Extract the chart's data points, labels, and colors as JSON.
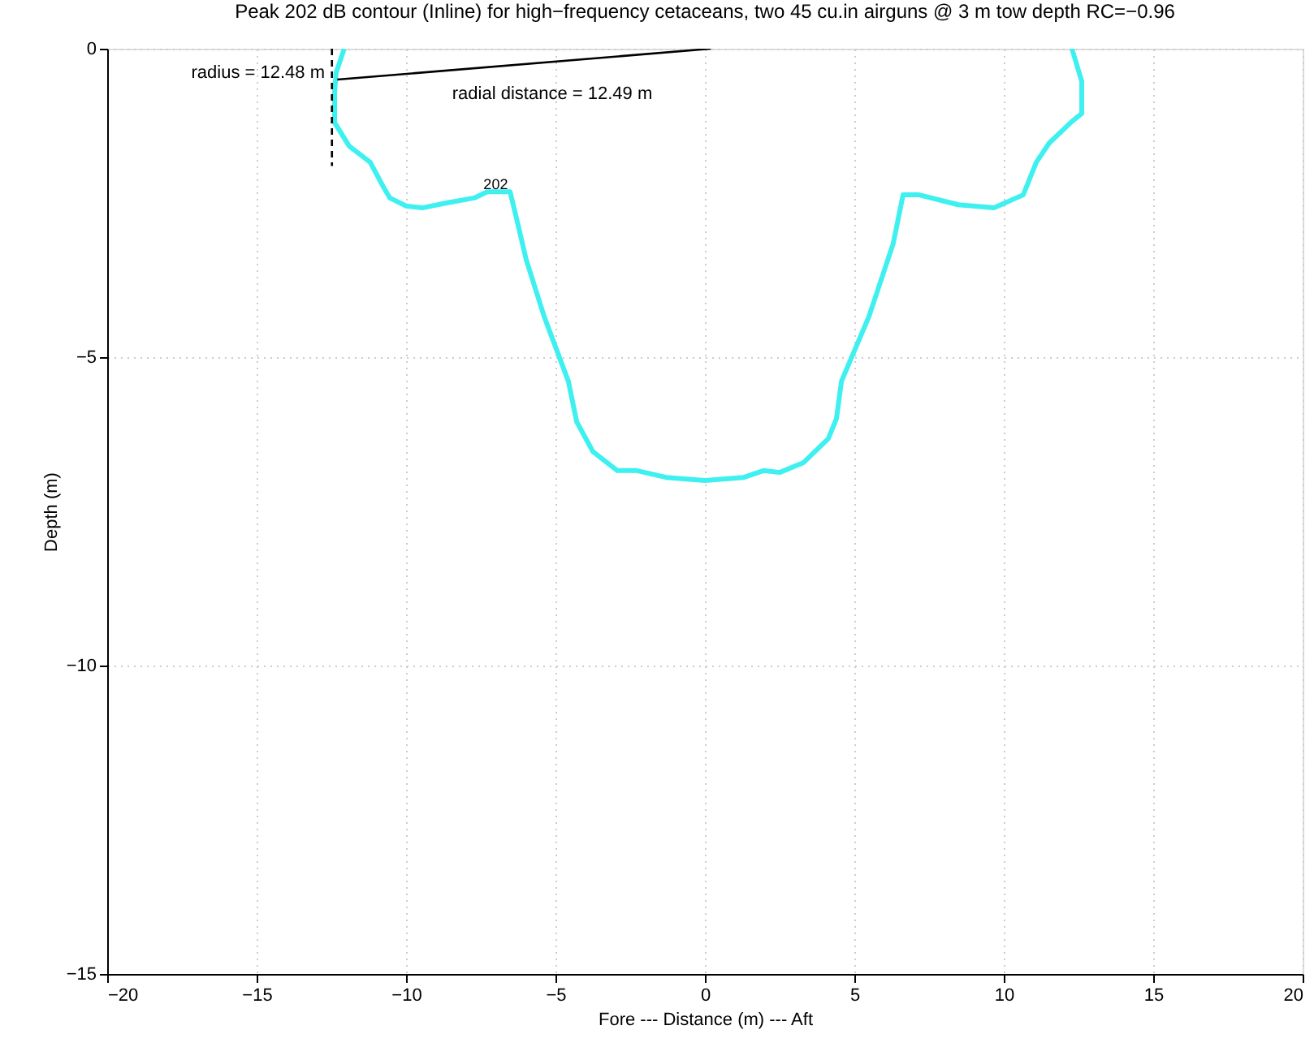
{
  "chart_data": {
    "type": "line",
    "title": "Peak 202 dB contour (Inline) for high−frequency cetaceans, two 45 cu.in airguns @ 3 m tow depth RC=−0.96",
    "xlabel": "Fore --- Distance (m) --- Aft",
    "ylabel": "Depth (m)",
    "xlim": [
      -20,
      20
    ],
    "xticks": [
      -20,
      -15,
      -10,
      -5,
      0,
      5,
      10,
      15,
      20
    ],
    "ylim": [
      -15,
      0
    ],
    "yticks": [
      -15,
      -10,
      -5,
      0
    ],
    "grid": true,
    "marker": "none",
    "series": [
      {
        "color": "#3ef0f0",
        "line_style": "solid",
        "x": [
          -12.07,
          -12.34,
          -12.39,
          -12.39,
          -11.9,
          -11.2,
          -10.76,
          -10.54,
          -10.0,
          -9.46,
          -8.64,
          -7.72,
          -7.28,
          -6.74,
          -6.52,
          -6.3,
          -5.98,
          -5.38,
          -4.57,
          -4.29,
          -3.75,
          -2.93,
          -2.28,
          -1.3,
          0,
          1.3,
          1.96,
          2.5,
          3.3,
          4.13,
          4.4,
          4.57,
          5.49,
          6.3,
          6.63,
          7.17,
          8.48,
          9.67,
          10.65,
          11.09,
          11.52,
          12.28,
          12.61,
          12.61,
          12.28
        ],
        "values": [
          0,
          -0.39,
          -0.7,
          -1.2,
          -1.58,
          -1.84,
          -2.24,
          -2.42,
          -2.55,
          -2.58,
          -2.5,
          -2.42,
          -2.32,
          -2.32,
          -2.32,
          -2.76,
          -3.42,
          -4.34,
          -5.39,
          -6.05,
          -6.53,
          -6.84,
          -6.84,
          -6.95,
          -7.0,
          -6.95,
          -6.84,
          -6.87,
          -6.71,
          -6.32,
          -6.0,
          -5.39,
          -4.34,
          -3.16,
          -2.37,
          -2.37,
          -2.53,
          -2.58,
          -2.37,
          -1.84,
          -1.53,
          -1.18,
          -1.05,
          -0.53,
          0
        ]
      },
      {
        "color": "#000000",
        "line_style": "dashed",
        "x": [
          -12.48,
          -12.48
        ],
        "values": [
          0,
          -1.9
        ]
      },
      {
        "color": "#000000",
        "line_style": "solid",
        "x": [
          0.2,
          -12.3
        ],
        "values": [
          0,
          -0.5
        ]
      }
    ],
    "annotations": [
      "radius = 12.48 m",
      "radial distance = 12.49 m",
      {
        "text": "202",
        "x": -7.0,
        "y": -2.2
      }
    ]
  }
}
